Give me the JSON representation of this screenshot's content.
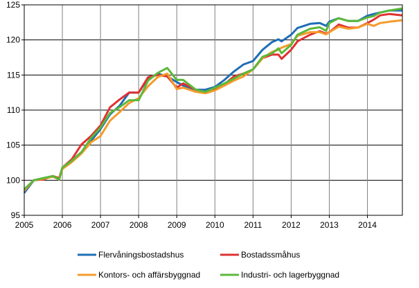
{
  "chart_data": {
    "type": "line",
    "title": "",
    "xlabel": "",
    "ylabel": "",
    "ylim": [
      95,
      125
    ],
    "yticks": [
      "95",
      "100",
      "105",
      "110",
      "115",
      "120",
      "125"
    ],
    "xlim": [
      "2005-01",
      "2014-12"
    ],
    "xticks": [
      "2005",
      "2006",
      "2007",
      "2008",
      "2009",
      "2010",
      "2011",
      "2012",
      "2013",
      "2014"
    ],
    "grid": true,
    "legend_placement": "bottom",
    "x": [
      "2005-01",
      "2005-04",
      "2005-07",
      "2005-10",
      "2005-12",
      "2006-01",
      "2006-04",
      "2006-07",
      "2006-10",
      "2007-01",
      "2007-04",
      "2007-07",
      "2007-10",
      "2008-01",
      "2008-04",
      "2008-07",
      "2008-10",
      "2009-01",
      "2009-03",
      "2009-07",
      "2009-10",
      "2010-01",
      "2010-04",
      "2010-07",
      "2010-10",
      "2011-01",
      "2011-04",
      "2011-07",
      "2011-09",
      "2011-10",
      "2012-01",
      "2012-03",
      "2012-07",
      "2012-10",
      "2012-12",
      "2013-01",
      "2013-04",
      "2013-07",
      "2013-10",
      "2014-01",
      "2014-03",
      "2014-05",
      "2014-08",
      "2014-12"
    ],
    "series": [
      {
        "name": "Flervåningsbostadshus",
        "color": "#1f6db5",
        "values": [
          98.2,
          100.0,
          100.3,
          100.6,
          100.2,
          101.8,
          102.8,
          104.0,
          105.6,
          107.3,
          109.4,
          110.6,
          112.5,
          112.5,
          114.5,
          115.2,
          114.8,
          114.0,
          113.5,
          112.9,
          112.9,
          113.3,
          114.3,
          115.5,
          116.5,
          117.0,
          118.6,
          119.7,
          120.1,
          119.8,
          120.75,
          121.7,
          122.3,
          122.4,
          122.0,
          122.6,
          123.1,
          122.7,
          122.7,
          123.45,
          123.7,
          123.9,
          124.2,
          124.2
        ]
      },
      {
        "name": "Bostadssmåhus",
        "color": "#e03131",
        "values": [
          98.5,
          100.0,
          100.1,
          100.6,
          100.3,
          101.8,
          103.0,
          105.1,
          106.3,
          107.8,
          110.4,
          111.5,
          112.5,
          112.5,
          114.7,
          115.0,
          114.8,
          113.2,
          113.8,
          112.9,
          112.5,
          112.9,
          113.7,
          114.8,
          115.2,
          115.8,
          117.4,
          117.9,
          117.9,
          117.3,
          118.6,
          119.8,
          120.75,
          121.25,
          120.9,
          121.1,
          122.2,
          121.75,
          121.75,
          122.4,
          122.9,
          123.5,
          123.7,
          123.5
        ]
      },
      {
        "name": "Kontors- och affärsbyggnad",
        "color": "#f59a2b",
        "values": [
          98.5,
          100.0,
          100.2,
          100.5,
          100.1,
          101.6,
          102.6,
          103.8,
          105.4,
          106.3,
          108.5,
          109.7,
          111.0,
          111.7,
          113.4,
          114.7,
          115.2,
          113.0,
          113.2,
          112.6,
          112.4,
          112.8,
          113.5,
          114.2,
          114.8,
          115.8,
          117.4,
          118.3,
          118.6,
          118.9,
          119.4,
          120.6,
          121.1,
          121.1,
          120.8,
          121.1,
          121.9,
          121.6,
          121.75,
          122.3,
          122.0,
          122.4,
          122.6,
          122.8
        ]
      },
      {
        "name": "Industri- och lagerbyggnad",
        "color": "#5cb83a",
        "values": [
          98.7,
          100.0,
          100.3,
          100.6,
          100.1,
          101.8,
          102.8,
          104.0,
          106.0,
          107.5,
          109.6,
          110.4,
          111.4,
          111.4,
          114.2,
          115.3,
          116.0,
          114.3,
          114.3,
          112.9,
          112.6,
          113.2,
          113.8,
          114.5,
          115.2,
          115.8,
          117.6,
          118.1,
          118.8,
          118.1,
          119.3,
          120.75,
          121.6,
          121.8,
          121.3,
          122.4,
          123.1,
          122.7,
          122.7,
          123.2,
          123.4,
          123.9,
          124.2,
          124.5
        ]
      }
    ]
  }
}
